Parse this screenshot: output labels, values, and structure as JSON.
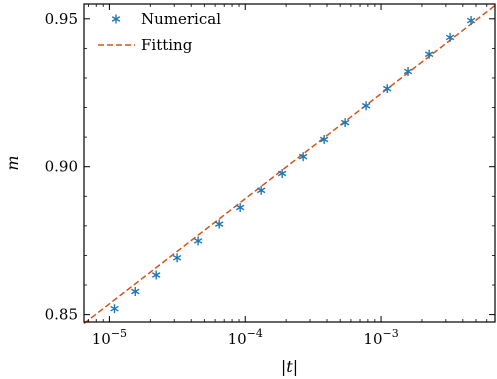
{
  "chart_data": {
    "type": "scatter",
    "xscale": "log",
    "xlim": [
      6.5e-06,
      0.0069
    ],
    "ylim": [
      0.8475,
      0.955
    ],
    "xlabel": "|t|",
    "ylabel": "m",
    "x_ticks": [
      {
        "value": 1e-05,
        "base": "10",
        "exp": "−5"
      },
      {
        "value": 0.0001,
        "base": "10",
        "exp": "−4"
      },
      {
        "value": 0.001,
        "base": "10",
        "exp": "−3"
      }
    ],
    "y_ticks": [
      {
        "value": 0.85,
        "label": "0.85"
      },
      {
        "value": 0.9,
        "label": "0.90"
      },
      {
        "value": 0.95,
        "label": "0.95"
      }
    ],
    "y_minor_step": 0.01,
    "legend": {
      "placement": "top-left"
    },
    "series": [
      {
        "name": "Numerical",
        "kind": "points",
        "marker": "asterisk",
        "color": "#1f77b4",
        "x": [
          1.09e-05,
          1.55e-05,
          2.21e-05,
          3.15e-05,
          4.5e-05,
          6.43e-05,
          9.18e-05,
          0.000131,
          0.000187,
          0.000267,
          0.000381,
          0.000544,
          0.000776,
          0.00111,
          0.00158,
          0.00226,
          0.00322,
          0.0046
        ],
        "y": [
          0.852,
          0.8578,
          0.8634,
          0.8692,
          0.8749,
          0.8806,
          0.8862,
          0.892,
          0.8977,
          0.9034,
          0.9092,
          0.9149,
          0.9206,
          0.9264,
          0.9322,
          0.938,
          0.9437,
          0.9494
        ]
      },
      {
        "name": "Fitting",
        "kind": "line",
        "linestyle": "dashed",
        "color": "#d6541a",
        "x": [
          6.5e-06,
          0.0069
        ],
        "y": [
          0.847,
          0.9545
        ]
      }
    ]
  }
}
